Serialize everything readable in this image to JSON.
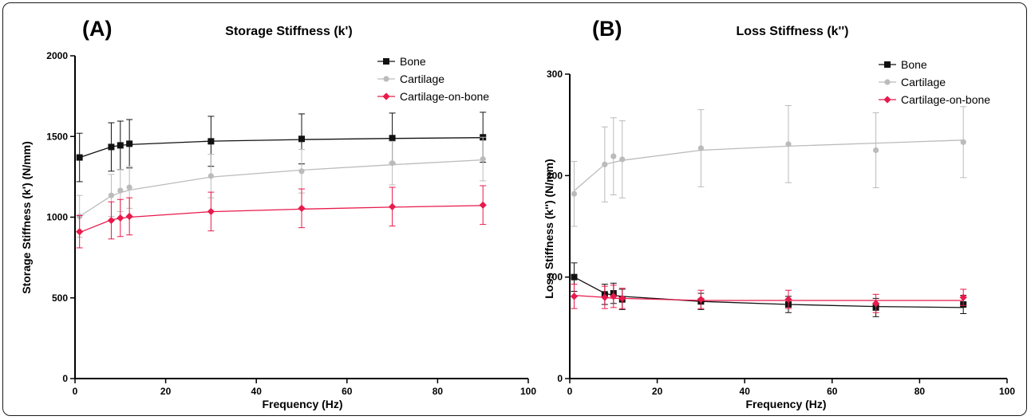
{
  "panels": [
    {
      "letter": "(A)",
      "title": "Storage Stiffness (k')",
      "ylabel": "Storage Stiffness (k') (N/mm)",
      "xlabel": "Frequency (Hz)"
    },
    {
      "letter": "(B)",
      "title": "Loss Stiffness (k'')",
      "ylabel": "Loss Stiffness (k'') (N/mm)",
      "xlabel": "Frequency (Hz)"
    }
  ],
  "chart_data": [
    {
      "type": "line",
      "title": "Storage Stiffness (k')",
      "xlabel": "Frequency (Hz)",
      "ylabel": "Storage Stiffness (k') (N/mm)",
      "xlim": [
        0,
        100
      ],
      "ylim": [
        0,
        2000
      ],
      "x_ticks": [
        0,
        20,
        40,
        60,
        80,
        100
      ],
      "y_ticks": [
        0,
        500,
        1000,
        1500,
        2000
      ],
      "grid": false,
      "legend_position": "top-right",
      "x": [
        1,
        8,
        10,
        12,
        30,
        50,
        70,
        90
      ],
      "series": [
        {
          "name": "Bone",
          "color": "#111111",
          "marker": "square",
          "values": [
            1370,
            1435,
            1445,
            1455,
            1470,
            1485,
            1490,
            1495
          ],
          "errors": [
            150,
            150,
            150,
            150,
            155,
            155,
            155,
            155
          ],
          "fit": [
            1370,
            1436,
            1445,
            1450,
            1471,
            1481,
            1488,
            1493
          ]
        },
        {
          "name": "Cartilage",
          "color": "#bbbbbb",
          "marker": "circle",
          "values": [
            1005,
            1135,
            1165,
            1185,
            1255,
            1285,
            1335,
            1360
          ],
          "errors": [
            130,
            130,
            130,
            130,
            135,
            135,
            135,
            135
          ],
          "fit": [
            1005,
            1132,
            1152,
            1168,
            1249,
            1292,
            1325,
            1355
          ]
        },
        {
          "name": "Cartilage-on-bone",
          "color": "#e8194b",
          "marker": "diamond",
          "values": [
            910,
            980,
            995,
            1005,
            1035,
            1055,
            1065,
            1075
          ],
          "errors": [
            100,
            115,
            115,
            115,
            120,
            120,
            120,
            120
          ],
          "fit": [
            905,
            983,
            993,
            1000,
            1034,
            1050,
            1062,
            1072
          ]
        }
      ]
    },
    {
      "type": "line",
      "title": "Loss Stiffness (k'')",
      "xlabel": "Frequency (Hz)",
      "ylabel": "Loss Stiffness (k'') (N/mm)",
      "xlim": [
        0,
        100
      ],
      "ylim": [
        0,
        300
      ],
      "x_ticks": [
        0,
        20,
        40,
        60,
        80,
        100
      ],
      "y_ticks": [
        0,
        100,
        200,
        300
      ],
      "grid": false,
      "legend_position": "top-right",
      "x": [
        1,
        8,
        10,
        12,
        30,
        50,
        70,
        90
      ],
      "series": [
        {
          "name": "Bone",
          "color": "#111111",
          "marker": "square",
          "values": [
            100,
            83,
            84,
            78,
            76,
            73,
            70,
            73
          ],
          "errors": [
            14,
            10,
            10,
            10,
            8,
            8,
            9,
            9
          ],
          "fit": [
            100,
            84,
            82,
            81,
            76,
            73,
            71,
            70
          ]
        },
        {
          "name": "Cartilage",
          "color": "#bbbbbb",
          "marker": "circle",
          "values": [
            182,
            211,
            219,
            216,
            227,
            231,
            225,
            233
          ],
          "errors": [
            32,
            37,
            38,
            38,
            38,
            38,
            37,
            35
          ],
          "fit": [
            185,
            211,
            213,
            215,
            225,
            229,
            232,
            235
          ]
        },
        {
          "name": "Cartilage-on-bone",
          "color": "#e8194b",
          "marker": "diamond",
          "values": [
            81,
            80,
            81,
            79,
            78,
            78,
            74,
            80
          ],
          "errors": [
            12,
            11,
            11,
            10,
            9,
            9,
            9,
            8
          ],
          "fit": [
            82,
            80,
            79,
            79,
            77,
            77,
            77,
            77
          ]
        }
      ]
    }
  ]
}
